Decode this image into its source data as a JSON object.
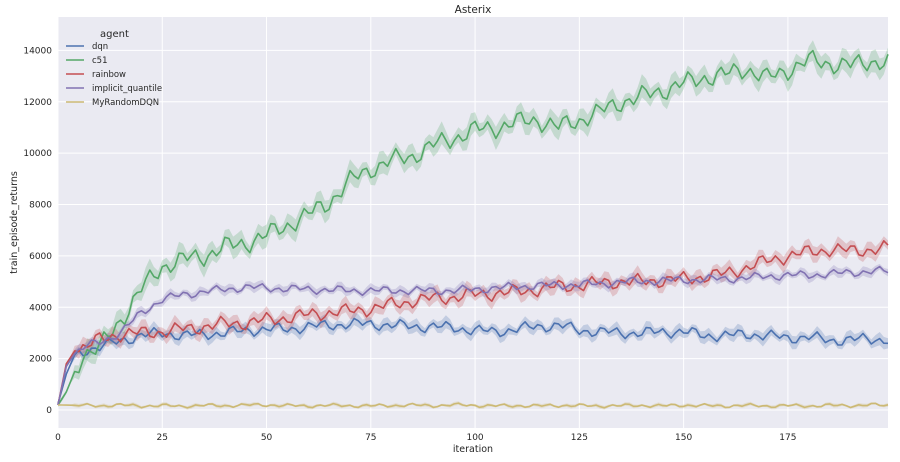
{
  "chart_data": {
    "type": "line",
    "title": "Asterix",
    "xlabel": "iteration",
    "ylabel": "train_episode_returns",
    "xlim": [
      0,
      199
    ],
    "ylim": [
      -700,
      15300
    ],
    "x_ticks": [
      0,
      25,
      50,
      75,
      100,
      125,
      150,
      175
    ],
    "y_ticks": [
      0,
      2000,
      4000,
      6000,
      8000,
      10000,
      12000,
      14000
    ],
    "grid": true,
    "legend": {
      "title": "agent",
      "placement": "top-left"
    },
    "series": [
      {
        "name": "dqn",
        "color": "#4c72b0",
        "points": [
          [
            0,
            250
          ],
          [
            2,
            1400
          ],
          [
            4,
            2150
          ],
          [
            7,
            2350
          ],
          [
            10,
            2450
          ],
          [
            15,
            2700
          ],
          [
            20,
            2900
          ],
          [
            25,
            3000
          ],
          [
            30,
            2900
          ],
          [
            35,
            2950
          ],
          [
            40,
            3000
          ],
          [
            45,
            3100
          ],
          [
            50,
            3150
          ],
          [
            55,
            3150
          ],
          [
            60,
            3250
          ],
          [
            65,
            3300
          ],
          [
            70,
            3350
          ],
          [
            75,
            3350
          ],
          [
            80,
            3300
          ],
          [
            85,
            3250
          ],
          [
            90,
            3250
          ],
          [
            95,
            3200
          ],
          [
            100,
            3100
          ],
          [
            105,
            3050
          ],
          [
            110,
            3150
          ],
          [
            115,
            3250
          ],
          [
            120,
            3300
          ],
          [
            125,
            3100
          ],
          [
            130,
            3050
          ],
          [
            135,
            3000
          ],
          [
            140,
            3000
          ],
          [
            145,
            3050
          ],
          [
            150,
            3050
          ],
          [
            155,
            2900
          ],
          [
            160,
            2900
          ],
          [
            165,
            2950
          ],
          [
            170,
            2900
          ],
          [
            175,
            2800
          ],
          [
            180,
            2850
          ],
          [
            185,
            2700
          ],
          [
            190,
            2750
          ],
          [
            195,
            2750
          ],
          [
            199,
            2750
          ]
        ],
        "band": 200
      },
      {
        "name": "c51",
        "color": "#55a868",
        "points": [
          [
            0,
            200
          ],
          [
            2,
            700
          ],
          [
            4,
            1500
          ],
          [
            6,
            2200
          ],
          [
            10,
            2400
          ],
          [
            15,
            3500
          ],
          [
            20,
            4700
          ],
          [
            25,
            5600
          ],
          [
            30,
            5850
          ],
          [
            35,
            6000
          ],
          [
            40,
            6350
          ],
          [
            45,
            6500
          ],
          [
            50,
            6800
          ],
          [
            55,
            7200
          ],
          [
            60,
            7600
          ],
          [
            65,
            8100
          ],
          [
            70,
            8900
          ],
          [
            75,
            9400
          ],
          [
            80,
            9700
          ],
          [
            85,
            9900
          ],
          [
            90,
            10300
          ],
          [
            95,
            10600
          ],
          [
            100,
            10900
          ],
          [
            105,
            11000
          ],
          [
            110,
            11200
          ],
          [
            115,
            11300
          ],
          [
            120,
            11000
          ],
          [
            125,
            11300
          ],
          [
            130,
            11600
          ],
          [
            135,
            12000
          ],
          [
            140,
            12200
          ],
          [
            145,
            12450
          ],
          [
            150,
            12700
          ],
          [
            155,
            12950
          ],
          [
            160,
            13050
          ],
          [
            165,
            13300
          ],
          [
            170,
            12900
          ],
          [
            175,
            13250
          ],
          [
            180,
            13600
          ],
          [
            185,
            13500
          ],
          [
            190,
            13400
          ],
          [
            195,
            13600
          ],
          [
            199,
            13500
          ]
        ],
        "band": 350
      },
      {
        "name": "rainbow",
        "color": "#c44e52",
        "points": [
          [
            0,
            200
          ],
          [
            2,
            1800
          ],
          [
            4,
            2300
          ],
          [
            7,
            2500
          ],
          [
            10,
            2750
          ],
          [
            15,
            2950
          ],
          [
            20,
            3000
          ],
          [
            25,
            3050
          ],
          [
            30,
            3150
          ],
          [
            35,
            3250
          ],
          [
            40,
            3350
          ],
          [
            45,
            3400
          ],
          [
            50,
            3500
          ],
          [
            55,
            3600
          ],
          [
            60,
            3700
          ],
          [
            65,
            3800
          ],
          [
            70,
            3850
          ],
          [
            75,
            3950
          ],
          [
            80,
            4100
          ],
          [
            85,
            4250
          ],
          [
            90,
            4350
          ],
          [
            95,
            4400
          ],
          [
            100,
            4500
          ],
          [
            105,
            4550
          ],
          [
            110,
            4600
          ],
          [
            115,
            4700
          ],
          [
            120,
            4800
          ],
          [
            125,
            4850
          ],
          [
            130,
            4950
          ],
          [
            135,
            5000
          ],
          [
            140,
            5000
          ],
          [
            145,
            5050
          ],
          [
            150,
            5100
          ],
          [
            155,
            5200
          ],
          [
            160,
            5300
          ],
          [
            165,
            5550
          ],
          [
            170,
            5800
          ],
          [
            175,
            6000
          ],
          [
            180,
            6150
          ],
          [
            185,
            6250
          ],
          [
            190,
            6200
          ],
          [
            195,
            6250
          ],
          [
            199,
            6300
          ]
        ],
        "band": 250
      },
      {
        "name": "implicit_quantile",
        "color": "#8172b2",
        "points": [
          [
            0,
            200
          ],
          [
            2,
            1700
          ],
          [
            4,
            2200
          ],
          [
            7,
            2500
          ],
          [
            10,
            2650
          ],
          [
            15,
            3000
          ],
          [
            20,
            3800
          ],
          [
            25,
            4300
          ],
          [
            30,
            4500
          ],
          [
            35,
            4600
          ],
          [
            40,
            4700
          ],
          [
            45,
            4780
          ],
          [
            50,
            4750
          ],
          [
            55,
            4720
          ],
          [
            60,
            4700
          ],
          [
            65,
            4680
          ],
          [
            70,
            4650
          ],
          [
            75,
            4650
          ],
          [
            80,
            4650
          ],
          [
            85,
            4650
          ],
          [
            90,
            4650
          ],
          [
            95,
            4650
          ],
          [
            100,
            4700
          ],
          [
            105,
            4750
          ],
          [
            110,
            4800
          ],
          [
            115,
            4850
          ],
          [
            120,
            4850
          ],
          [
            125,
            4900
          ],
          [
            130,
            4900
          ],
          [
            135,
            5000
          ],
          [
            140,
            5000
          ],
          [
            145,
            5050
          ],
          [
            150,
            5050
          ],
          [
            155,
            5100
          ],
          [
            160,
            5100
          ],
          [
            165,
            5150
          ],
          [
            170,
            5200
          ],
          [
            175,
            5250
          ],
          [
            180,
            5250
          ],
          [
            185,
            5300
          ],
          [
            190,
            5350
          ],
          [
            195,
            5400
          ],
          [
            199,
            5400
          ]
        ],
        "band": 150
      },
      {
        "name": "MyRandomDQN",
        "color": "#ccb974",
        "points": [
          [
            0,
            200
          ],
          [
            5,
            180
          ],
          [
            10,
            170
          ],
          [
            15,
            190
          ],
          [
            20,
            160
          ],
          [
            25,
            170
          ],
          [
            30,
            150
          ],
          [
            35,
            180
          ],
          [
            40,
            170
          ],
          [
            45,
            190
          ],
          [
            50,
            200
          ],
          [
            55,
            170
          ],
          [
            60,
            160
          ],
          [
            65,
            180
          ],
          [
            70,
            170
          ],
          [
            75,
            160
          ],
          [
            80,
            180
          ],
          [
            85,
            190
          ],
          [
            90,
            170
          ],
          [
            95,
            200
          ],
          [
            100,
            180
          ],
          [
            105,
            160
          ],
          [
            110,
            170
          ],
          [
            115,
            160
          ],
          [
            120,
            180
          ],
          [
            125,
            170
          ],
          [
            130,
            160
          ],
          [
            135,
            170
          ],
          [
            140,
            180
          ],
          [
            145,
            160
          ],
          [
            150,
            190
          ],
          [
            155,
            170
          ],
          [
            160,
            160
          ],
          [
            165,
            180
          ],
          [
            170,
            160
          ],
          [
            175,
            170
          ],
          [
            180,
            160
          ],
          [
            185,
            180
          ],
          [
            190,
            170
          ],
          [
            195,
            200
          ],
          [
            199,
            180
          ]
        ],
        "band": 60
      }
    ]
  }
}
